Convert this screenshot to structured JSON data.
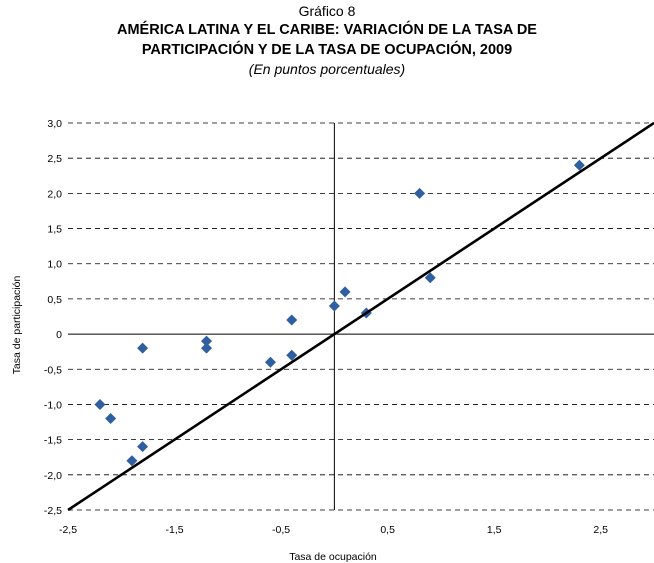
{
  "header": {
    "figure_label": "Gráfico 8",
    "title_line1": "AMÉRICA LATINA Y EL CARIBE: VARIACIÓN DE LA TASA DE",
    "title_line2": "PARTICIPACIÓN Y DE LA TASA DE OCUPACIÓN, 2009",
    "subtitle": "(En puntos porcentuales)"
  },
  "chart_data": {
    "type": "scatter",
    "title": "AMÉRICA LATINA Y EL CARIBE: VARIACIÓN DE LA TASA DE PARTICIPACIÓN Y DE LA TASA DE OCUPACIÓN, 2009",
    "subtitle": "(En puntos porcentuales)",
    "xlabel": "Tasa de ocupación",
    "ylabel": "Tasa de participación",
    "xlim": [
      -2.5,
      3.0
    ],
    "ylim": [
      -2.5,
      3.0
    ],
    "x_ticks": [
      "-2,5",
      "-1,5",
      "-0,5",
      "0,5",
      "1,5",
      "2,5"
    ],
    "y_ticks": [
      "3,0",
      "2,5",
      "2,0",
      "1,5",
      "1,0",
      "0,5",
      "0",
      "-0,5",
      "-1,0",
      "-1,5",
      "-2,0",
      "-2,5"
    ],
    "grid": "horizontal dashed",
    "marker_color": "#2F5F9E",
    "line_color": "#000000",
    "points": [
      {
        "x": -2.2,
        "y": -1.0
      },
      {
        "x": -2.1,
        "y": -1.2
      },
      {
        "x": -1.9,
        "y": -1.8
      },
      {
        "x": -1.8,
        "y": -1.6
      },
      {
        "x": -1.8,
        "y": -0.2
      },
      {
        "x": -1.2,
        "y": -0.1
      },
      {
        "x": -1.2,
        "y": -0.2
      },
      {
        "x": -0.6,
        "y": -0.4
      },
      {
        "x": -0.4,
        "y": 0.2
      },
      {
        "x": -0.4,
        "y": -0.3
      },
      {
        "x": 0.0,
        "y": 0.4
      },
      {
        "x": 0.1,
        "y": 0.6
      },
      {
        "x": 0.3,
        "y": 0.3
      },
      {
        "x": 0.8,
        "y": 2.0
      },
      {
        "x": 0.9,
        "y": 0.8
      },
      {
        "x": 2.3,
        "y": 2.4
      }
    ],
    "reference_line": {
      "x": [
        -2.5,
        3.0
      ],
      "y": [
        -2.5,
        3.0
      ]
    }
  }
}
